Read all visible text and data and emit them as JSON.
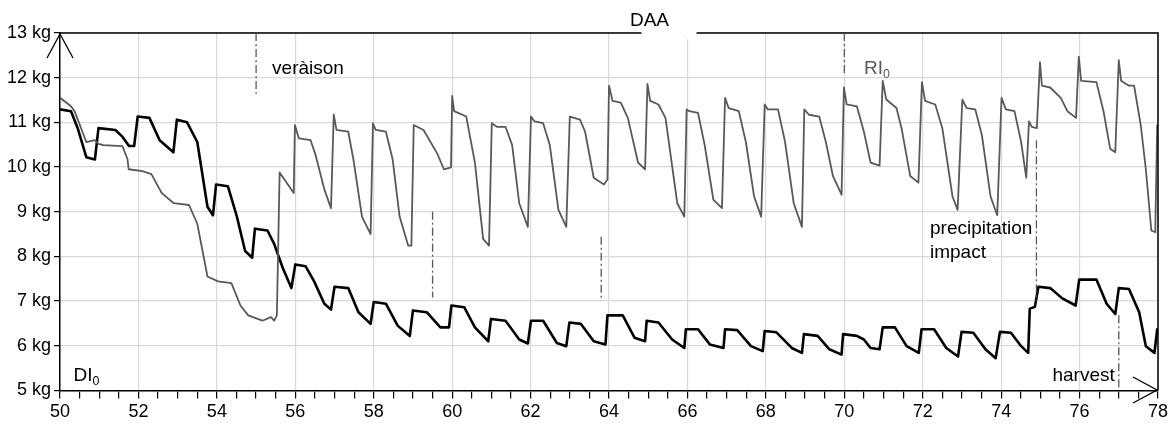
{
  "chart_data": {
    "type": "line",
    "xlabel": "DAA",
    "series": [
      {
        "name": "RI$_{0}$",
        "color": "#595959",
        "x": [
          50.0,
          50.28,
          50.37,
          50.67,
          50.89,
          50.98,
          51.1,
          51.59,
          51.72,
          51.75,
          52.1,
          52.33,
          52.59,
          52.9,
          53.29,
          53.5,
          53.76,
          54.03,
          54.37,
          54.6,
          54.8,
          55.16,
          55.38,
          55.46,
          55.53,
          55.6,
          55.96,
          55.99,
          56.09,
          56.39,
          56.52,
          56.74,
          56.91,
          56.98,
          57.05,
          57.35,
          57.48,
          57.7,
          57.92,
          57.98,
          58.05,
          58.31,
          58.48,
          58.66,
          58.88,
          58.96,
          59.02,
          59.27,
          59.62,
          59.79,
          59.97,
          60.0,
          60.05,
          60.36,
          60.58,
          60.79,
          60.94,
          61.01,
          61.14,
          61.36,
          61.53,
          61.71,
          61.93,
          62.01,
          62.1,
          62.32,
          62.49,
          62.71,
          62.91,
          63.0,
          63.26,
          63.39,
          63.61,
          63.87,
          63.96,
          64.0,
          64.09,
          64.3,
          64.48,
          64.74,
          64.92,
          64.98,
          65.05,
          65.26,
          65.44,
          65.74,
          65.92,
          65.98,
          66.05,
          66.27,
          66.44,
          66.66,
          66.88,
          66.96,
          67.05,
          67.31,
          67.49,
          67.7,
          67.88,
          67.97,
          68.05,
          68.31,
          68.49,
          68.71,
          68.92,
          68.98,
          69.1,
          69.36,
          69.53,
          69.71,
          69.93,
          69.99,
          70.06,
          70.32,
          70.5,
          70.67,
          70.9,
          70.98,
          71.07,
          71.33,
          71.46,
          71.68,
          71.89,
          71.98,
          72.06,
          72.32,
          72.5,
          72.76,
          72.89,
          73.01,
          73.12,
          73.34,
          73.51,
          73.73,
          73.9,
          74.01,
          74.12,
          74.34,
          74.51,
          74.64,
          74.71,
          74.78,
          74.91,
          74.99,
          75.04,
          75.25,
          75.52,
          75.69,
          75.91,
          75.98,
          76.04,
          76.43,
          76.61,
          76.78,
          76.91,
          77.0,
          77.06,
          77.26,
          77.39,
          77.56,
          77.69,
          77.83,
          77.93,
          77.98
        ],
        "values": [
          11.55,
          11.36,
          11.25,
          10.56,
          10.6,
          10.52,
          10.49,
          10.47,
          10.18,
          9.95,
          9.91,
          9.84,
          9.42,
          9.19,
          9.15,
          8.73,
          7.55,
          7.44,
          7.4,
          6.9,
          6.68,
          6.56,
          6.64,
          6.56,
          6.68,
          9.88,
          9.42,
          10.94,
          10.64,
          10.6,
          10.26,
          9.5,
          9.08,
          11.17,
          10.83,
          10.79,
          10.18,
          8.89,
          8.5,
          10.98,
          10.83,
          10.79,
          10.18,
          8.89,
          8.24,
          8.24,
          10.94,
          10.83,
          10.3,
          9.95,
          9.99,
          11.59,
          11.25,
          11.13,
          10.1,
          8.39,
          8.24,
          10.98,
          10.9,
          10.9,
          10.49,
          9.19,
          8.66,
          11.13,
          11.02,
          10.98,
          10.49,
          9.04,
          8.66,
          11.13,
          11.06,
          10.79,
          9.76,
          9.61,
          9.72,
          11.82,
          11.48,
          11.44,
          11.1,
          10.1,
          9.95,
          11.86,
          11.48,
          11.4,
          11.1,
          9.19,
          8.89,
          11.29,
          11.25,
          11.21,
          10.49,
          9.27,
          9.08,
          11.55,
          11.32,
          11.25,
          10.56,
          9.34,
          8.89,
          11.4,
          11.29,
          11.29,
          10.56,
          9.19,
          8.66,
          11.29,
          11.17,
          11.13,
          10.56,
          9.8,
          9.38,
          11.78,
          11.4,
          11.36,
          10.79,
          10.1,
          10.03,
          11.93,
          11.51,
          11.32,
          10.87,
          9.8,
          9.65,
          11.9,
          11.48,
          11.4,
          10.87,
          9.34,
          9.04,
          11.51,
          11.32,
          11.29,
          10.71,
          9.34,
          8.92,
          11.55,
          11.29,
          11.25,
          10.56,
          9.76,
          11.02,
          10.9,
          10.87,
          12.35,
          11.82,
          11.78,
          11.55,
          11.25,
          11.1,
          12.47,
          11.93,
          11.9,
          11.25,
          10.41,
          10.33,
          12.39,
          11.93,
          11.82,
          11.82,
          10.94,
          9.95,
          8.58,
          8.54,
          10.94
        ]
      },
      {
        "name": "DI$_{0}$",
        "color": "#000000",
        "x": [
          50.0,
          50.28,
          50.45,
          50.67,
          50.89,
          50.98,
          51.41,
          51.59,
          51.76,
          51.89,
          51.98,
          52.28,
          52.54,
          52.89,
          52.98,
          53.24,
          53.5,
          53.76,
          53.9,
          53.98,
          54.28,
          54.51,
          54.72,
          54.9,
          54.97,
          55.29,
          55.46,
          55.68,
          55.9,
          56.0,
          56.26,
          56.48,
          56.74,
          56.91,
          57.0,
          57.35,
          57.61,
          57.92,
          58.0,
          58.31,
          58.61,
          58.92,
          59.0,
          59.35,
          59.7,
          59.92,
          59.98,
          60.31,
          60.58,
          60.92,
          60.99,
          61.36,
          61.71,
          61.93,
          62.01,
          62.32,
          62.67,
          62.91,
          62.99,
          63.28,
          63.61,
          63.91,
          63.96,
          64.35,
          64.65,
          64.92,
          64.96,
          65.26,
          65.61,
          65.92,
          65.96,
          66.27,
          66.57,
          66.92,
          66.96,
          67.27,
          67.62,
          67.92,
          67.97,
          68.27,
          68.66,
          68.92,
          68.97,
          69.32,
          69.62,
          69.93,
          69.97,
          70.32,
          70.5,
          70.67,
          70.9,
          70.98,
          71.29,
          71.59,
          71.9,
          71.97,
          72.29,
          72.6,
          72.9,
          72.99,
          73.29,
          73.6,
          73.86,
          73.97,
          74.25,
          74.51,
          74.69,
          74.73,
          74.86,
          74.95,
          75.25,
          75.56,
          75.9,
          75.99,
          76.43,
          76.69,
          76.91,
          77.0,
          77.26,
          77.52,
          77.69,
          77.91,
          77.98
        ],
        "values": [
          11.29,
          11.25,
          10.87,
          10.22,
          10.17,
          10.87,
          10.83,
          10.68,
          10.47,
          10.47,
          11.13,
          11.1,
          10.6,
          10.33,
          11.06,
          11.0,
          10.56,
          9.11,
          8.92,
          9.61,
          9.57,
          8.89,
          8.12,
          7.97,
          8.62,
          8.58,
          8.28,
          7.74,
          7.29,
          7.82,
          7.78,
          7.44,
          6.94,
          6.81,
          7.32,
          7.29,
          6.75,
          6.49,
          6.98,
          6.94,
          6.45,
          6.22,
          6.79,
          6.75,
          6.41,
          6.41,
          6.9,
          6.86,
          6.41,
          6.1,
          6.6,
          6.56,
          6.14,
          6.05,
          6.56,
          6.56,
          6.06,
          5.99,
          6.52,
          6.49,
          6.1,
          6.03,
          6.68,
          6.68,
          6.18,
          6.1,
          6.56,
          6.52,
          6.14,
          5.95,
          6.37,
          6.37,
          6.03,
          5.95,
          6.37,
          6.35,
          5.99,
          5.88,
          6.33,
          6.3,
          5.95,
          5.84,
          6.26,
          6.22,
          5.92,
          5.8,
          6.26,
          6.22,
          6.14,
          5.95,
          5.92,
          6.41,
          6.41,
          5.99,
          5.84,
          6.37,
          6.37,
          5.95,
          5.76,
          6.31,
          6.29,
          5.92,
          5.72,
          6.31,
          6.29,
          5.99,
          5.84,
          6.83,
          6.87,
          7.32,
          7.29,
          7.06,
          6.9,
          7.48,
          7.48,
          6.94,
          6.71,
          7.29,
          7.27,
          6.75,
          5.99,
          5.84,
          6.37
        ]
      }
    ],
    "xlim": [
      50,
      78
    ],
    "xticks": [
      50,
      {
        "value": 50.5,
        "label": null
      },
      52,
      {
        "value": 52.5,
        "label": null
      },
      {
        "value": 51,
        "label": null
      },
      {
        "value": 51.5,
        "label": null
      },
      {
        "value": 53,
        "label": null
      },
      {
        "value": 53.5,
        "label": null
      },
      54,
      {
        "value": 54.5,
        "label": null
      },
      {
        "value": 55,
        "label": null
      },
      {
        "value": 55.5,
        "label": null
      },
      56,
      {
        "value": 56.5,
        "label": null
      },
      {
        "value": 57,
        "label": null
      },
      {
        "value": 57.5,
        "label": null
      },
      58,
      {
        "value": 58.5,
        "label": null
      },
      {
        "value": 59,
        "label": null
      },
      {
        "value": 59.5,
        "label": null
      },
      60,
      {
        "value": 60.5,
        "label": null
      },
      {
        "value": 61,
        "label": null
      },
      {
        "value": 61.5,
        "label": null
      },
      62,
      {
        "value": 62.5,
        "label": null
      },
      {
        "value": 63,
        "label": null
      },
      {
        "value": 63.5,
        "label": null
      },
      64,
      {
        "value": 64.5,
        "label": null
      },
      {
        "value": 65,
        "label": null
      },
      {
        "value": 65.5,
        "label": null
      },
      66,
      {
        "value": 66.5,
        "label": null
      },
      {
        "value": 67,
        "label": null
      },
      {
        "value": 67.5,
        "label": null
      },
      68,
      {
        "value": 68.5,
        "label": null
      },
      {
        "value": 69,
        "label": null
      },
      {
        "value": 69.5,
        "label": null
      },
      70,
      {
        "value": 70.5,
        "label": null
      },
      {
        "value": 71,
        "label": null
      },
      {
        "value": 71.5,
        "label": null
      },
      72,
      {
        "value": 72.5,
        "label": null
      },
      {
        "value": 73,
        "label": null
      },
      {
        "value": 73.5,
        "label": null
      },
      74,
      {
        "value": 74.5,
        "label": null
      },
      {
        "value": 75,
        "label": null
      },
      {
        "value": 75.5,
        "label": null
      },
      76,
      {
        "value": 76.5,
        "label": null
      },
      {
        "value": 77,
        "label": null
      },
      {
        "value": 77.5,
        "label": null
      },
      78
    ],
    "ylim": [
      5,
      13
    ],
    "yticks": [
      {
        "value": 5,
        "label": "5 kg"
      },
      {
        "value": 6,
        "label": "6 kg"
      },
      {
        "value": 7,
        "label": "7 kg"
      },
      {
        "value": 8,
        "label": "8 kg"
      },
      {
        "value": 9,
        "label": "9 kg"
      },
      {
        "value": 10,
        "label": "10 kg"
      },
      {
        "value": 11,
        "label": "11 kg"
      },
      {
        "value": 12,
        "label": "12 kg"
      },
      {
        "value": 13,
        "label": "13 kg"
      }
    ],
    "ref_lines": [
      {
        "axis": "x",
        "value": 55,
        "label": "veràison",
        "color": "#595959",
        "line_style": "dashdot"
      },
      {
        "axis": "x",
        "value": 59.5,
        "label": null,
        "color": "#595959",
        "line_style": "dashdot"
      },
      {
        "axis": "x",
        "value": 63.8,
        "label": null,
        "color": "#595959",
        "line_style": "dashdot"
      },
      {
        "axis": "x",
        "value": 70,
        "label": null,
        "color": "#595959",
        "line_style": "dashdot"
      },
      {
        "axis": "x",
        "value": 74.9,
        "label": "precipitation impact",
        "color": "#595959",
        "line_style": "dashdot"
      },
      {
        "axis": "x",
        "value": 77,
        "label": "harvest",
        "color": "#595959",
        "line_style": "dashdot"
      }
    ],
    "grid": true,
    "legend": false,
    "marker": "none",
    "line_style": "solid"
  }
}
